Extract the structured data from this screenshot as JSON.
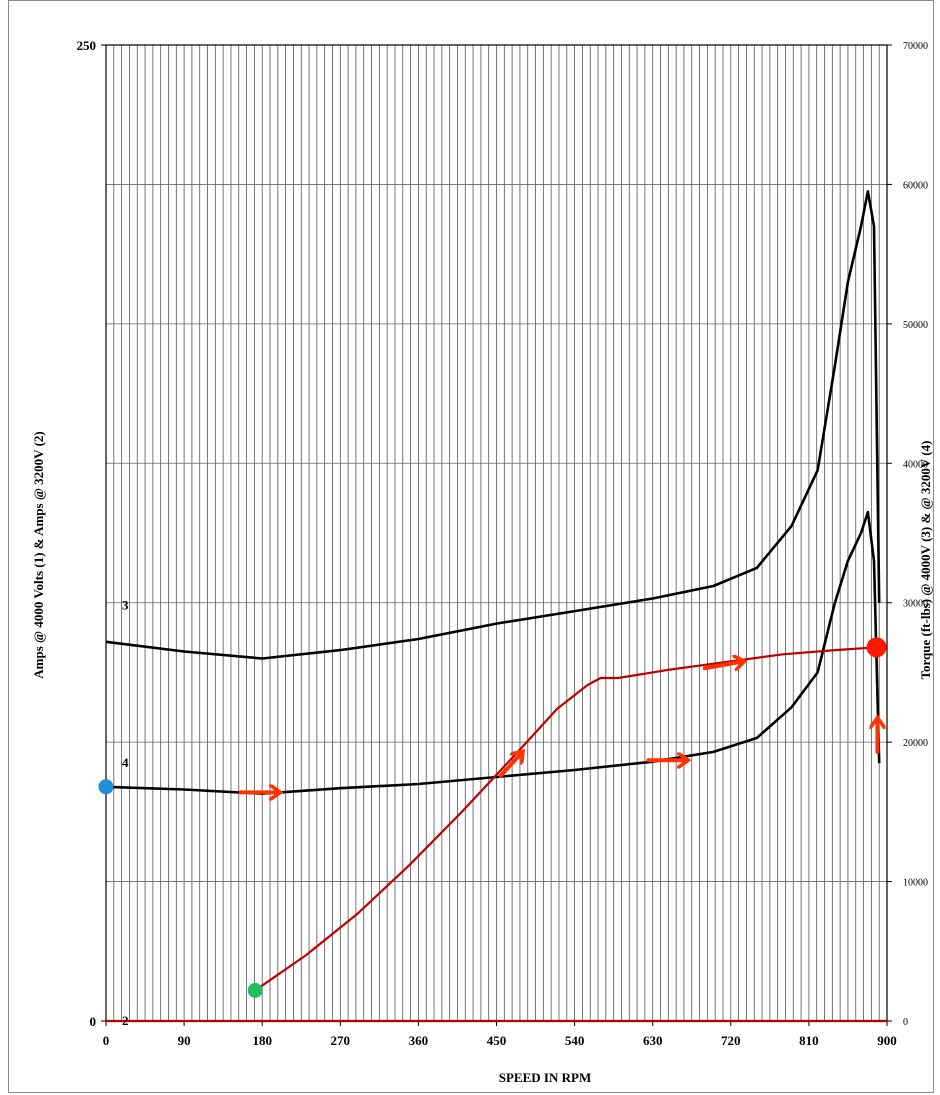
{
  "chart_data": {
    "type": "line",
    "xlabel": "SPEED IN RPM",
    "ylabel_left": "Amps @ 4000 Volts (1) & Amps @ 3200V (2)",
    "ylabel_right": "Torque (ft-lbs) @ 4000V (3) & @ 3200V (4)",
    "xlim": [
      0,
      900
    ],
    "ylim_left": [
      0,
      250
    ],
    "ylim_right": [
      0,
      70000
    ],
    "x_ticks": [
      "0",
      "90",
      "180",
      "270",
      "360",
      "450",
      "540",
      "630",
      "720",
      "810",
      "900"
    ],
    "y_left_ticks": [
      "0",
      "250"
    ],
    "y_right_ticks": [
      "0",
      "10000",
      "20000",
      "30000",
      "40000",
      "50000",
      "60000",
      "70000"
    ],
    "grid": true,
    "series": [
      {
        "name": "2",
        "color": "#c00000",
        "axis": "left",
        "x": [
          0,
          900
        ],
        "y": [
          0,
          0
        ]
      },
      {
        "name": "3",
        "color": "#000000",
        "axis": "right",
        "x": [
          0,
          90,
          180,
          270,
          360,
          450,
          540,
          630,
          700,
          750,
          790,
          820,
          840,
          855,
          870,
          878,
          885,
          891
        ],
        "y": [
          27200,
          26500,
          26000,
          26600,
          27400,
          28500,
          29400,
          30300,
          31200,
          32500,
          35500,
          39500,
          47000,
          53000,
          57000,
          59500,
          57000,
          30000
        ]
      },
      {
        "name": "4",
        "color": "#000000",
        "axis": "right",
        "x": [
          0,
          90,
          180,
          270,
          360,
          450,
          540,
          630,
          700,
          750,
          790,
          820,
          840,
          855,
          870,
          878,
          885,
          891
        ],
        "y": [
          16800,
          16600,
          16300,
          16700,
          17000,
          17500,
          18000,
          18600,
          19300,
          20300,
          22500,
          25000,
          30000,
          33000,
          35000,
          36500,
          33000,
          18500
        ]
      },
      {
        "name": "",
        "color": "#c00000",
        "axis": "right",
        "x": [
          172,
          230,
          290,
          350,
          410,
          470,
          520,
          555,
          570,
          590,
          650,
          720,
          780,
          840,
          888
        ],
        "y": [
          2200,
          4700,
          7700,
          11200,
          15000,
          19000,
          22400,
          24100,
          24600,
          24600,
          25200,
          25800,
          26300,
          26600,
          26800
        ]
      }
    ],
    "series_labels": [
      "3",
      "4",
      "2"
    ],
    "markers": [
      {
        "name": "start-point-torque",
        "color": "#1f8fd6",
        "x": 0,
        "y": 16800,
        "axis": "right"
      },
      {
        "name": "start-point-load",
        "color": "#22c05a",
        "x": 172,
        "y": 2200,
        "axis": "right"
      },
      {
        "name": "operating-point",
        "color": "#ff1a00",
        "x": 888,
        "y": 26800,
        "axis": "right"
      }
    ],
    "annotation_arrows": [
      {
        "name": "arrow-torque-low",
        "x": 155,
        "y": 16400,
        "dx": 45,
        "dy": 0
      },
      {
        "name": "arrow-torque-mid",
        "x": 625,
        "y": 18700,
        "dx": 45,
        "dy": 0
      },
      {
        "name": "arrow-load-rise",
        "x": 455,
        "y": 17600,
        "dx": 25,
        "dy": 1700
      },
      {
        "name": "arrow-load-upper",
        "x": 690,
        "y": 25300,
        "dx": 45,
        "dy": 500
      },
      {
        "name": "arrow-up",
        "x": 889,
        "y": 19300,
        "dx": 0,
        "dy": 2400
      }
    ]
  }
}
